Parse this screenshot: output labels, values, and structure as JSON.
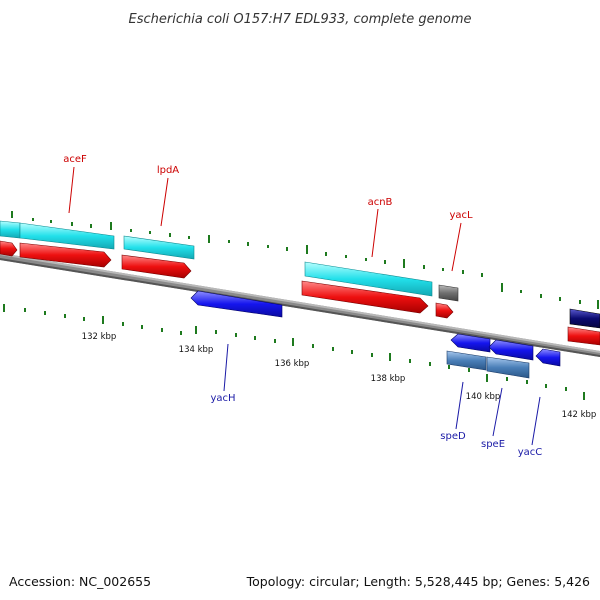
{
  "title": "Escherichia coli O157:H7 EDL933, complete genome",
  "footer": {
    "accession": "Accession: NC_002655",
    "summary": "Topology: circular; Length: 5,528,445 bp; Genes: 5,426"
  },
  "colors": {
    "cyan": "#38e8ee",
    "red": "#ee1111",
    "blue": "#1a1aee",
    "steel": "#4a7fb8",
    "navy": "#0a0a70",
    "gray": "#707070",
    "tick": "#1e7a1e",
    "label_top": "#cc0000",
    "label_bot": "#1a1aa6"
  },
  "scale_labels": [
    "132 kbp",
    "134 kbp",
    "136 kbp",
    "138 kbp",
    "140 kbp",
    "142 kbp"
  ],
  "top_labels": [
    "aceF",
    "lpdA",
    "acnB",
    "yacL"
  ],
  "bottom_labels": [
    "yacH",
    "speD",
    "speE",
    "yacC"
  ]
}
